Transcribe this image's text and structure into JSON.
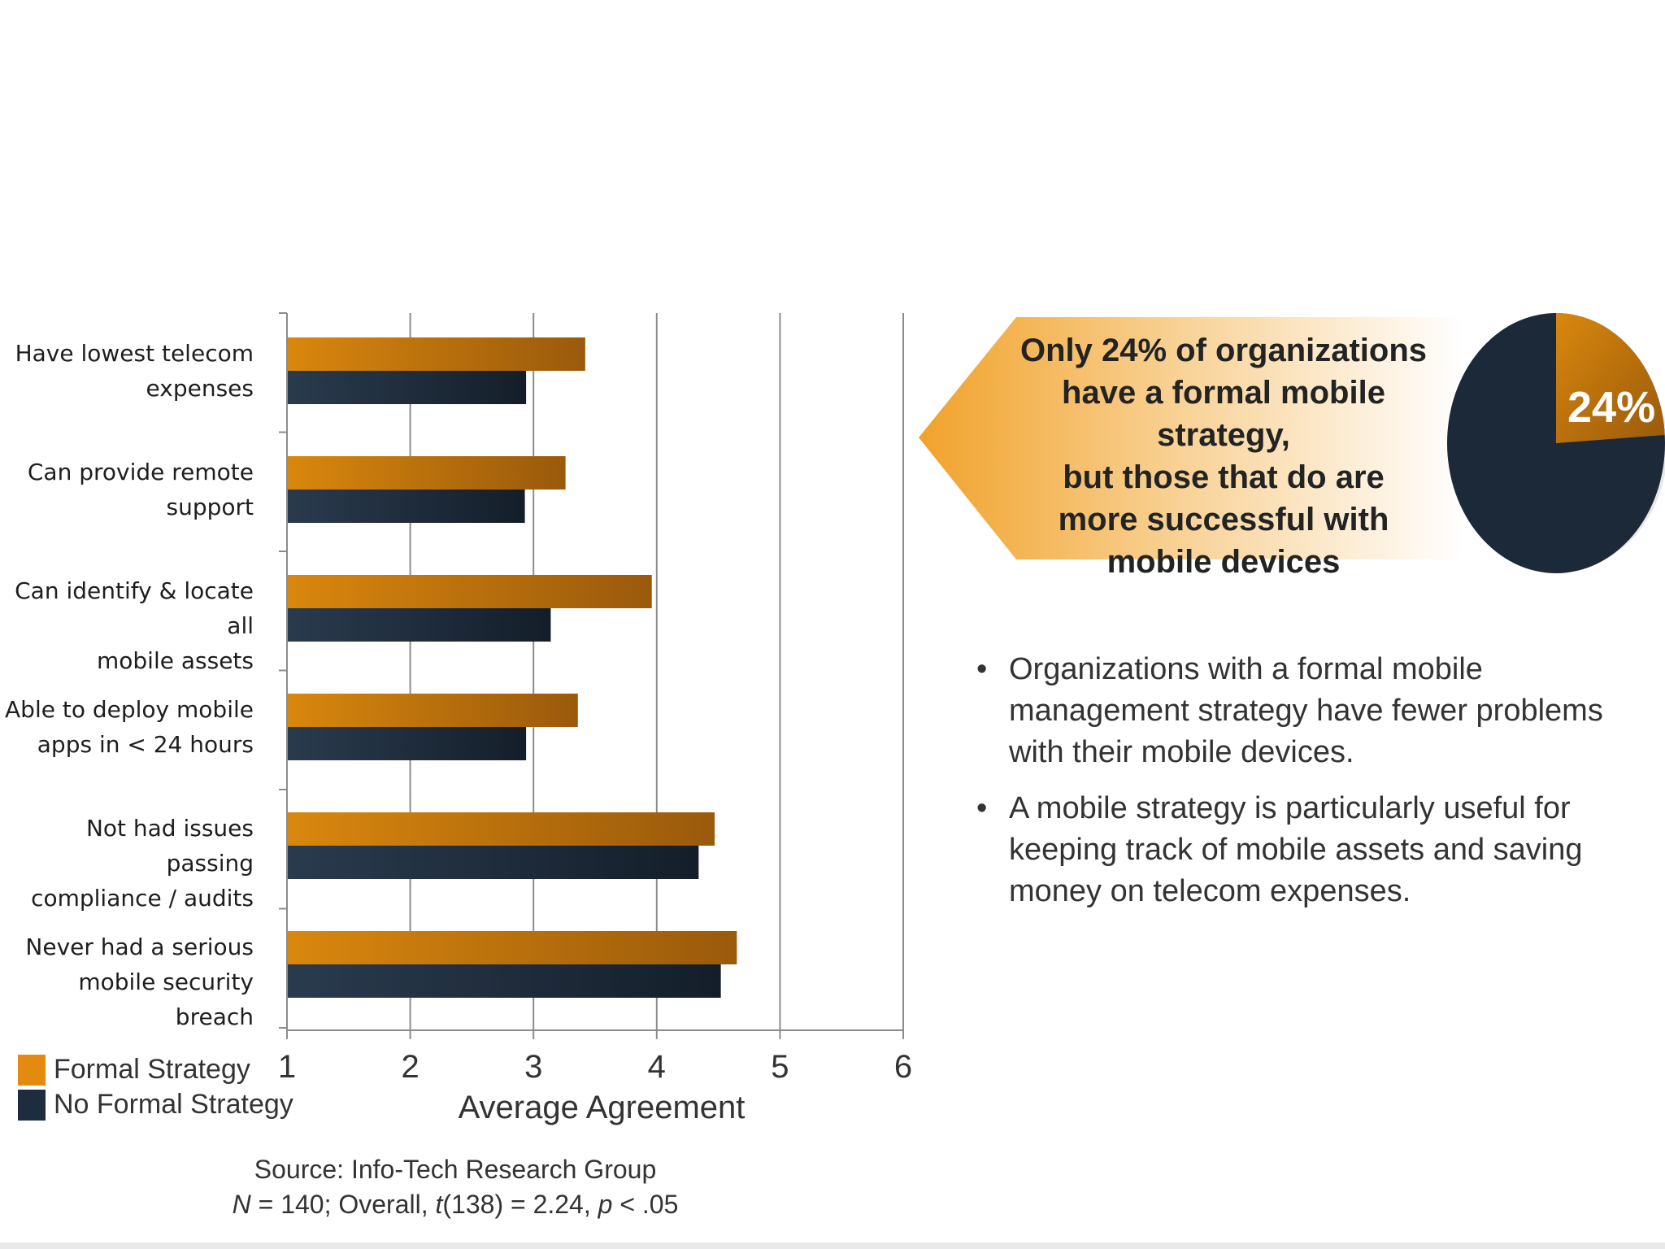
{
  "chart_data": {
    "type": "bar",
    "orientation": "horizontal",
    "categories": [
      [
        "Have lowest telecom",
        "expenses"
      ],
      [
        "Can provide remote",
        "support"
      ],
      [
        "Can identify & locate all",
        "mobile assets"
      ],
      [
        "Able to deploy mobile",
        "apps in < 24 hours"
      ],
      [
        "Not had issues passing",
        "compliance / audits"
      ],
      [
        "Never had a serious",
        "mobile security breach"
      ]
    ],
    "series": [
      {
        "name": "Formal Strategy",
        "color": "#c97a12",
        "values": [
          3.42,
          3.26,
          3.96,
          3.36,
          4.47,
          4.65
        ]
      },
      {
        "name": "No Formal Strategy",
        "color": "#1e2d3e",
        "values": [
          2.94,
          2.93,
          3.14,
          2.94,
          4.34,
          4.52
        ]
      }
    ],
    "xlim": [
      1,
      6
    ],
    "xticks": [
      "1",
      "2",
      "3",
      "4",
      "5",
      "6"
    ],
    "xlabel": "Average Agreement",
    "grid": true,
    "legend_position": "bottom-left"
  },
  "legend": {
    "formal": "Formal Strategy",
    "no_formal": "No Formal Strategy"
  },
  "source": {
    "line1": "Source: Info-Tech Research Group",
    "n_label": "N",
    "n_rest": " = 140; Overall, ",
    "t_label": "t",
    "t_rest": "(138) = 2.24, ",
    "p_label": "p",
    "p_rest": " < .05"
  },
  "callout": {
    "lines": [
      "Only 24% of organizations",
      "have a formal mobile strategy,",
      "but those that do are",
      "more successful with",
      "mobile devices"
    ],
    "pie_percent": 24,
    "pie_label": "24%"
  },
  "bullets": [
    "Organizations with a formal mobile management strategy have fewer problems with their mobile devices.",
    "A mobile strategy is particularly useful for keeping track of mobile assets and saving money on telecom expenses."
  ],
  "colors": {
    "formal": "#c97a12",
    "no_formal": "#1e2d3e",
    "grid": "#8c8c8c"
  }
}
